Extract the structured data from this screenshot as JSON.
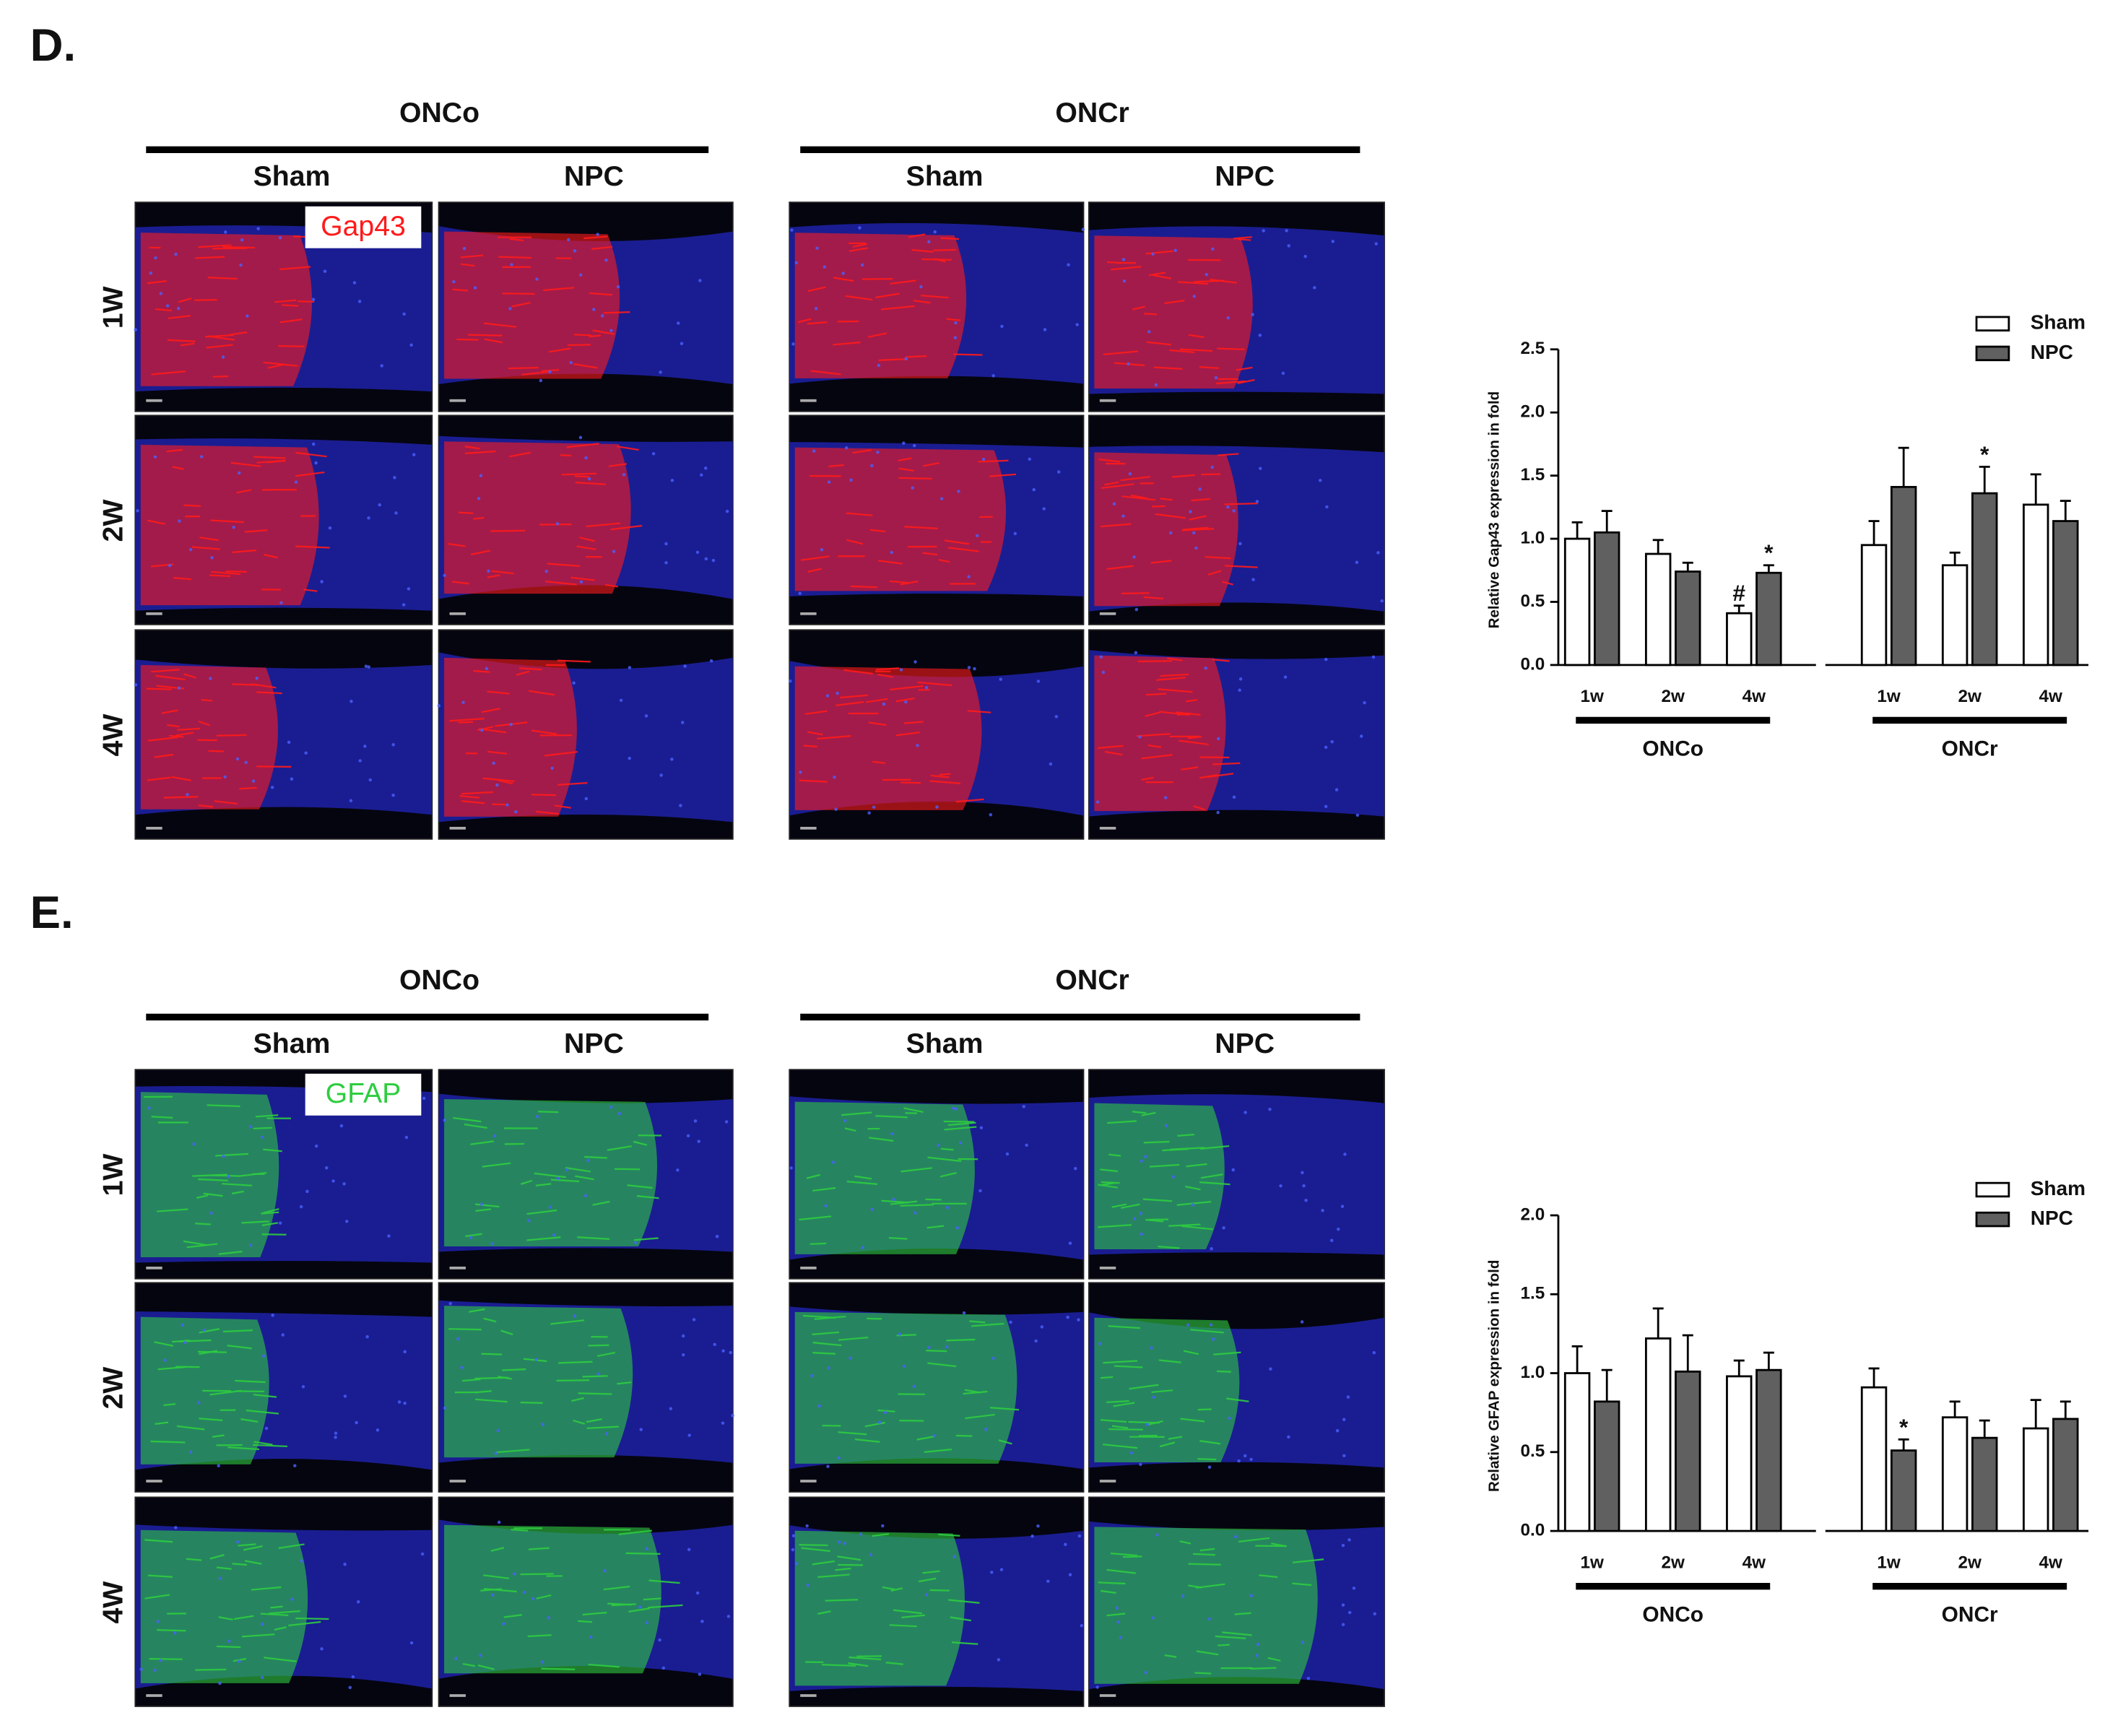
{
  "figure": {
    "panels": [
      {
        "label": "D.",
        "groups": [
          "ONCo",
          "ONCr"
        ],
        "conditions": [
          "Sham",
          "NPC",
          "Sham",
          "NPC"
        ],
        "rows": [
          "1W",
          "2W",
          "4W"
        ],
        "stain": "Gap43",
        "stain_color": "#ff1a1a"
      },
      {
        "label": "E.",
        "groups": [
          "ONCo",
          "ONCr"
        ],
        "conditions": [
          "Sham",
          "NPC",
          "Sham",
          "NPC"
        ],
        "rows": [
          "1W",
          "2W",
          "4W"
        ],
        "stain": "GFAP",
        "stain_color": "#2ecc40"
      }
    ]
  },
  "chart_data": [
    {
      "type": "bar",
      "y_label": "Relative Gap43 expression in fold",
      "categories": [
        "1w",
        "2w",
        "4w",
        "1w",
        "2w",
        "4w"
      ],
      "groups": [
        "ONCo",
        "ONCr"
      ],
      "ylim": [
        0,
        2.5
      ],
      "yticks": [
        {
          "value": 0,
          "label": "0.0"
        },
        {
          "value": 0.5,
          "label": "0.5"
        },
        {
          "value": 1,
          "label": "1.0"
        },
        {
          "value": 1.5,
          "label": "1.5"
        },
        {
          "value": 2,
          "label": "2.0"
        },
        {
          "value": 2.5,
          "label": "2.5"
        }
      ],
      "legend": "top right",
      "series": [
        {
          "name": "Sham",
          "color": "#ffffff",
          "values": [
            1.0,
            0.88,
            0.41,
            0.95,
            0.79,
            1.27
          ],
          "errors": [
            0.13,
            0.11,
            0.06,
            0.19,
            0.1,
            0.24
          ],
          "annotations": [
            null,
            null,
            "#",
            null,
            null,
            null
          ]
        },
        {
          "name": "NPC",
          "color": "#606060",
          "values": [
            1.05,
            0.74,
            0.73,
            1.41,
            1.36,
            1.14
          ],
          "errors": [
            0.17,
            0.07,
            0.06,
            0.31,
            0.21,
            0.16
          ],
          "annotations": [
            null,
            null,
            "*",
            null,
            "*",
            null
          ]
        }
      ]
    },
    {
      "type": "bar",
      "y_label": "Relative GFAP expression in fold",
      "categories": [
        "1w",
        "2w",
        "4w",
        "1w",
        "2w",
        "4w"
      ],
      "groups": [
        "ONCo",
        "ONCr"
      ],
      "ylim": [
        0,
        2.0
      ],
      "yticks": [
        {
          "value": 0,
          "label": "0.0"
        },
        {
          "value": 0.5,
          "label": "0.5"
        },
        {
          "value": 1,
          "label": "1.0"
        },
        {
          "value": 1.5,
          "label": "1.5"
        },
        {
          "value": 2,
          "label": "2.0"
        }
      ],
      "legend": "top right",
      "series": [
        {
          "name": "Sham",
          "color": "#ffffff",
          "values": [
            1.0,
            1.22,
            0.98,
            0.91,
            0.72,
            0.65
          ],
          "errors": [
            0.17,
            0.19,
            0.1,
            0.12,
            0.1,
            0.18
          ],
          "annotations": [
            null,
            null,
            null,
            null,
            null,
            null
          ]
        },
        {
          "name": "NPC",
          "color": "#606060",
          "values": [
            0.82,
            1.01,
            1.02,
            0.51,
            0.59,
            0.71
          ],
          "errors": [
            0.2,
            0.23,
            0.11,
            0.07,
            0.11,
            0.11
          ],
          "annotations": [
            null,
            null,
            null,
            "*",
            null,
            null
          ]
        }
      ]
    }
  ]
}
